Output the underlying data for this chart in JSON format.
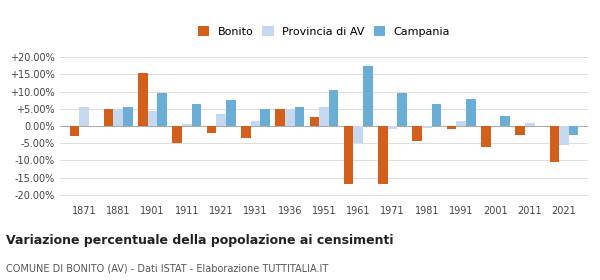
{
  "years": [
    1871,
    1881,
    1901,
    1911,
    1921,
    1931,
    1936,
    1951,
    1961,
    1971,
    1981,
    1991,
    2001,
    2011,
    2021
  ],
  "bonito": [
    -3.0,
    5.0,
    15.5,
    -5.0,
    -2.0,
    -3.5,
    5.0,
    2.5,
    -17.0,
    -17.0,
    -4.5,
    -1.0,
    -6.0,
    -2.5,
    -10.5
  ],
  "provincia_av": [
    5.5,
    5.0,
    4.5,
    0.5,
    3.5,
    1.5,
    5.0,
    5.5,
    -5.0,
    -1.0,
    -0.5,
    1.5,
    0.0,
    1.0,
    -5.5
  ],
  "campania": [
    0.0,
    5.5,
    9.5,
    6.5,
    7.5,
    5.0,
    5.5,
    10.5,
    17.5,
    9.5,
    6.5,
    8.0,
    3.0,
    0.0,
    -2.5
  ],
  "color_bonito": "#d45f1a",
  "color_provincia": "#c5d8f0",
  "color_campania": "#6aaed6",
  "title": "Variazione percentuale della popolazione ai censimenti",
  "subtitle": "COMUNE DI BONITO (AV) - Dati ISTAT - Elaborazione TUTTITALIA.IT",
  "ylim": [
    -22,
    22
  ],
  "yticks": [
    -20,
    -15,
    -10,
    -5,
    0,
    5,
    10,
    15,
    20
  ],
  "bar_width": 0.28
}
